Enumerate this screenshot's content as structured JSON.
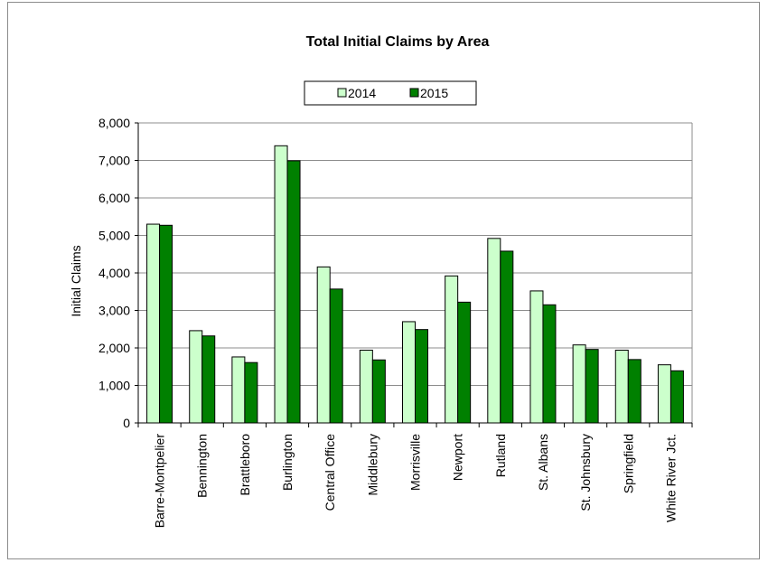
{
  "chart_data": {
    "type": "bar",
    "title": "Total Initial Claims by Area",
    "xlabel": "",
    "ylabel": "Initial Claims",
    "ylim": [
      0,
      8000
    ],
    "yticks": [
      "0",
      "1,000",
      "2,000",
      "3,000",
      "4,000",
      "5,000",
      "6,000",
      "7,000",
      "8,000"
    ],
    "grid": true,
    "legend_position": "top-center",
    "categories": [
      "Barre-Montpelier",
      "Bennington",
      "Brattleboro",
      "Burlington",
      "Central Office",
      "Middlebury",
      "Morrisville",
      "Newport",
      "Rutland",
      "St. Albans",
      "St. Johnsbury",
      "Springfield",
      "White River Jct."
    ],
    "series": [
      {
        "name": "2014",
        "color": "#ccffcc",
        "values": [
          5300,
          2460,
          1760,
          7390,
          4160,
          1940,
          2700,
          3920,
          4920,
          3520,
          2080,
          1940,
          1550
        ]
      },
      {
        "name": "2015",
        "color": "#008000",
        "values": [
          5270,
          2320,
          1610,
          6990,
          3570,
          1680,
          2490,
          3220,
          4580,
          3150,
          1960,
          1690,
          1390
        ]
      }
    ]
  }
}
